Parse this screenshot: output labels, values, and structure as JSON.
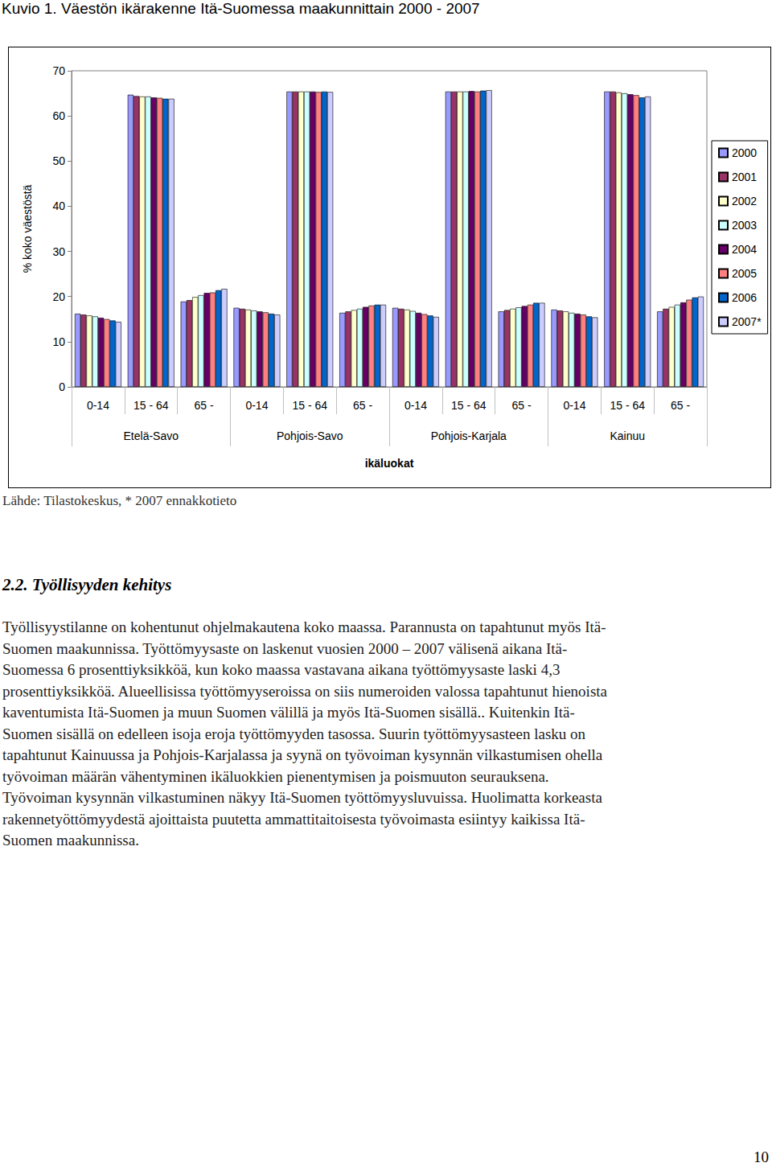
{
  "caption": "Kuvio 1. Väestön ikärakenne Itä-Suomessa maakunnittain 2000 - 2007",
  "chart_data": {
    "type": "bar",
    "categories": [
      "0-14",
      "15 - 64",
      "65 -",
      "0-14",
      "15 - 64",
      "65 -",
      "0-14",
      "15 - 64",
      "65 -",
      "0-14",
      "15 - 64",
      "65 -"
    ],
    "groups": [
      "Etelä-Savo",
      "Pohjois-Savo",
      "Pohjois-Karjala",
      "Kainuu"
    ],
    "x_label": "ikäluokat",
    "y_label": "% koko väestöstä",
    "ylim": [
      0,
      70
    ],
    "yticks": [
      0,
      10,
      20,
      30,
      40,
      50,
      60,
      70
    ],
    "grid": false,
    "legend": "right",
    "series": [
      {
        "name": "2000",
        "color": "#9999FF",
        "values": [
          16.2,
          64.7,
          18.9,
          17.5,
          65.4,
          16.4,
          17.5,
          65.4,
          16.7,
          17.1,
          65.4,
          16.7
        ]
      },
      {
        "name": "2001",
        "color": "#993366",
        "values": [
          16.0,
          64.4,
          19.2,
          17.3,
          65.4,
          16.7,
          17.3,
          65.4,
          17.0,
          16.9,
          65.4,
          17.3
        ]
      },
      {
        "name": "2002",
        "color": "#FFFFCC",
        "values": [
          15.8,
          64.3,
          19.9,
          17.1,
          65.4,
          17.0,
          17.1,
          65.4,
          17.3,
          16.7,
          65.2,
          17.7
        ]
      },
      {
        "name": "2003",
        "color": "#CCFFFF",
        "values": [
          15.6,
          64.3,
          20.3,
          16.9,
          65.4,
          17.3,
          16.8,
          65.4,
          17.6,
          16.4,
          65.0,
          18.2
        ]
      },
      {
        "name": "2004",
        "color": "#660066",
        "values": [
          15.3,
          64.1,
          20.8,
          16.7,
          65.4,
          17.7,
          16.4,
          65.5,
          17.9,
          16.2,
          64.8,
          18.7
        ]
      },
      {
        "name": "2005",
        "color": "#FF8080",
        "values": [
          15.0,
          64.0,
          20.9,
          16.5,
          65.3,
          18.0,
          16.1,
          65.4,
          18.2,
          16.0,
          64.6,
          19.3
        ]
      },
      {
        "name": "2006",
        "color": "#0066CC",
        "values": [
          14.7,
          63.8,
          21.4,
          16.2,
          65.4,
          18.2,
          15.8,
          65.6,
          18.6,
          15.6,
          64.1,
          19.8
        ]
      },
      {
        "name": "2007*",
        "color": "#CCCCFF",
        "values": [
          14.4,
          63.8,
          21.7,
          16.0,
          65.3,
          18.2,
          15.5,
          65.7,
          18.6,
          15.4,
          64.3,
          20.0
        ]
      }
    ]
  },
  "source": "Lähde: Tilastokeskus, * 2007 ennakkotieto",
  "heading": "2.2. Työllisyyden kehitys",
  "paragraph_lines": [
    "Työllisyystilanne on kohentunut ohjelmakautena koko maassa. Parannusta on tapahtunut myös Itä-",
    "Suomen maakunnissa. Työttömyysaste on laskenut vuosien 2000 – 2007 välisenä aikana Itä-",
    "Suomessa 6 prosenttiyksikköä, kun koko maassa vastavana aikana työttömyysaste laski 4,3",
    "prosenttiyksikköä. Alueellisissa työttömyyseroissa on siis numeroiden valossa tapahtunut hienoista",
    "kaventumista Itä-Suomen ja muun Suomen välillä ja myös Itä-Suomen sisällä.. Kuitenkin Itä-",
    "Suomen sisällä on edelleen isoja eroja työttömyyden tasossa. Suurin työttömyysasteen lasku on",
    "tapahtunut Kainuussa ja Pohjois-Karjalassa ja syynä on työvoiman kysynnän vilkastumisen ohella",
    "työvoiman määrän vähentyminen ikäluokkien pienentymisen ja poismuuton seurauksena.",
    "Työvoiman kysynnän vilkastuminen näkyy Itä-Suomen työttömyysluvuissa. Huolimatta korkeasta",
    "rakennetyöttömyydestä ajoittaista puutetta ammattitaitoisesta työvoimasta esiintyy kaikissa Itä-",
    "Suomen maakunnissa."
  ],
  "page_number": "10"
}
